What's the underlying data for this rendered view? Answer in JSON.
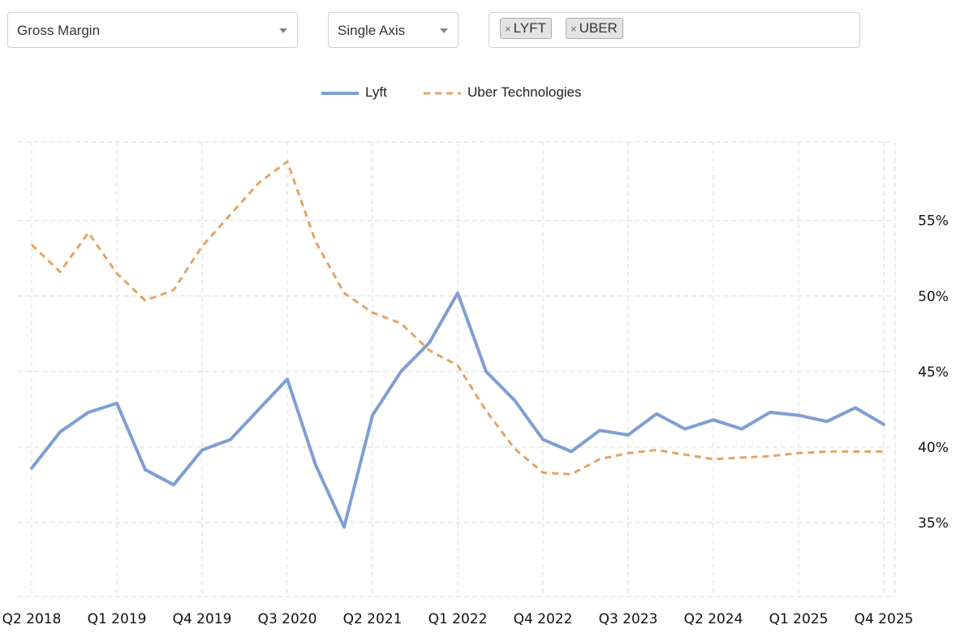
{
  "controls": {
    "metric": "Gross Margin",
    "axis_mode": "Single Axis",
    "tickers": [
      {
        "label": "LYFT",
        "remove_glyph": "×"
      },
      {
        "label": "UBER",
        "remove_glyph": "×"
      }
    ]
  },
  "chart_data": {
    "type": "line",
    "title": "",
    "xlabel": "",
    "ylabel": "",
    "x": [
      "Q2 2018",
      "Q3 2018",
      "Q4 2018",
      "Q1 2019",
      "Q2 2019",
      "Q3 2019",
      "Q4 2019",
      "Q1 2020",
      "Q2 2020",
      "Q3 2020",
      "Q4 2020",
      "Q1 2021",
      "Q2 2021",
      "Q3 2021",
      "Q4 2021",
      "Q1 2022",
      "Q2 2022",
      "Q3 2022",
      "Q4 2022",
      "Q1 2023",
      "Q2 2023",
      "Q3 2023",
      "Q4 2023",
      "Q1 2024",
      "Q2 2024",
      "Q3 2024",
      "Q4 2024",
      "Q1 2025",
      "Q2 2025",
      "Q3 2025",
      "Q4 2025"
    ],
    "x_tick_labels": [
      "Q2 2018",
      "Q1 2019",
      "Q4 2019",
      "Q3 2020",
      "Q2 2021",
      "Q1 2022",
      "Q4 2022",
      "Q3 2023",
      "Q2 2024",
      "Q1 2025",
      "Q4 2025"
    ],
    "y_ticks": [
      35,
      40,
      45,
      50,
      55
    ],
    "y_tick_suffix": "%",
    "ylim": [
      30.1,
      60.2
    ],
    "y_axis_side": "right",
    "grid": true,
    "legend_position": "top-center",
    "series": [
      {
        "name": "Lyft",
        "color": "#7f9fd1",
        "dash": "solid",
        "values": [
          38.6,
          41.0,
          42.3,
          42.9,
          38.5,
          37.5,
          39.8,
          40.5,
          42.5,
          44.5,
          38.8,
          34.7,
          42.1,
          45.0,
          46.9,
          50.2,
          45.0,
          43.1,
          40.5,
          39.7,
          41.1,
          40.8,
          42.2,
          41.2,
          41.8,
          41.2,
          42.3,
          42.1,
          41.7,
          42.6,
          41.5
        ]
      },
      {
        "name": "Uber Technologies",
        "color": "#e3a463",
        "dash": "dashed",
        "values": [
          53.4,
          51.6,
          54.2,
          51.5,
          49.7,
          50.4,
          53.3,
          55.4,
          57.5,
          58.9,
          53.6,
          50.2,
          48.9,
          48.2,
          46.4,
          45.4,
          42.4,
          39.9,
          38.3,
          38.2,
          39.2,
          39.6,
          39.8,
          39.5,
          39.2,
          39.3,
          39.4,
          39.6,
          39.7,
          39.7,
          39.7
        ]
      }
    ]
  }
}
